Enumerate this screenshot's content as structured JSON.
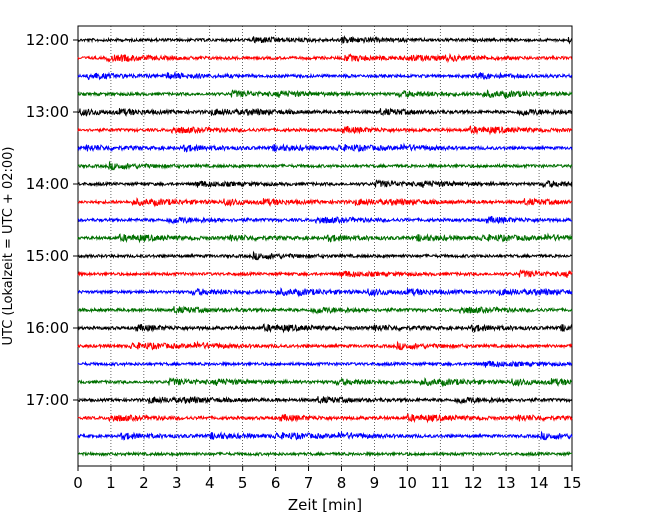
{
  "chart_data": {
    "type": "line",
    "subtype": "helicorder",
    "xlabel": "Zeit  [min]",
    "ylabel": "UTC (Lokalzeit = UTC + 02:00)",
    "xlim": [
      0,
      15
    ],
    "x_ticks": [
      "0",
      "1",
      "2",
      "3",
      "4",
      "5",
      "6",
      "7",
      "8",
      "9",
      "10",
      "11",
      "12",
      "13",
      "14",
      "15"
    ],
    "y_tick_labels": [
      "12:00",
      "13:00",
      "14:00",
      "15:00",
      "16:00",
      "17:00"
    ],
    "trace_interval_min": 15,
    "traces_per_hour": 4,
    "start_time": "12:00",
    "end_time": "18:00",
    "trace_colors": [
      "#000000",
      "#ff0000",
      "#0000ff",
      "#007000"
    ],
    "vertical_grid": "dotted",
    "legend": "none"
  }
}
